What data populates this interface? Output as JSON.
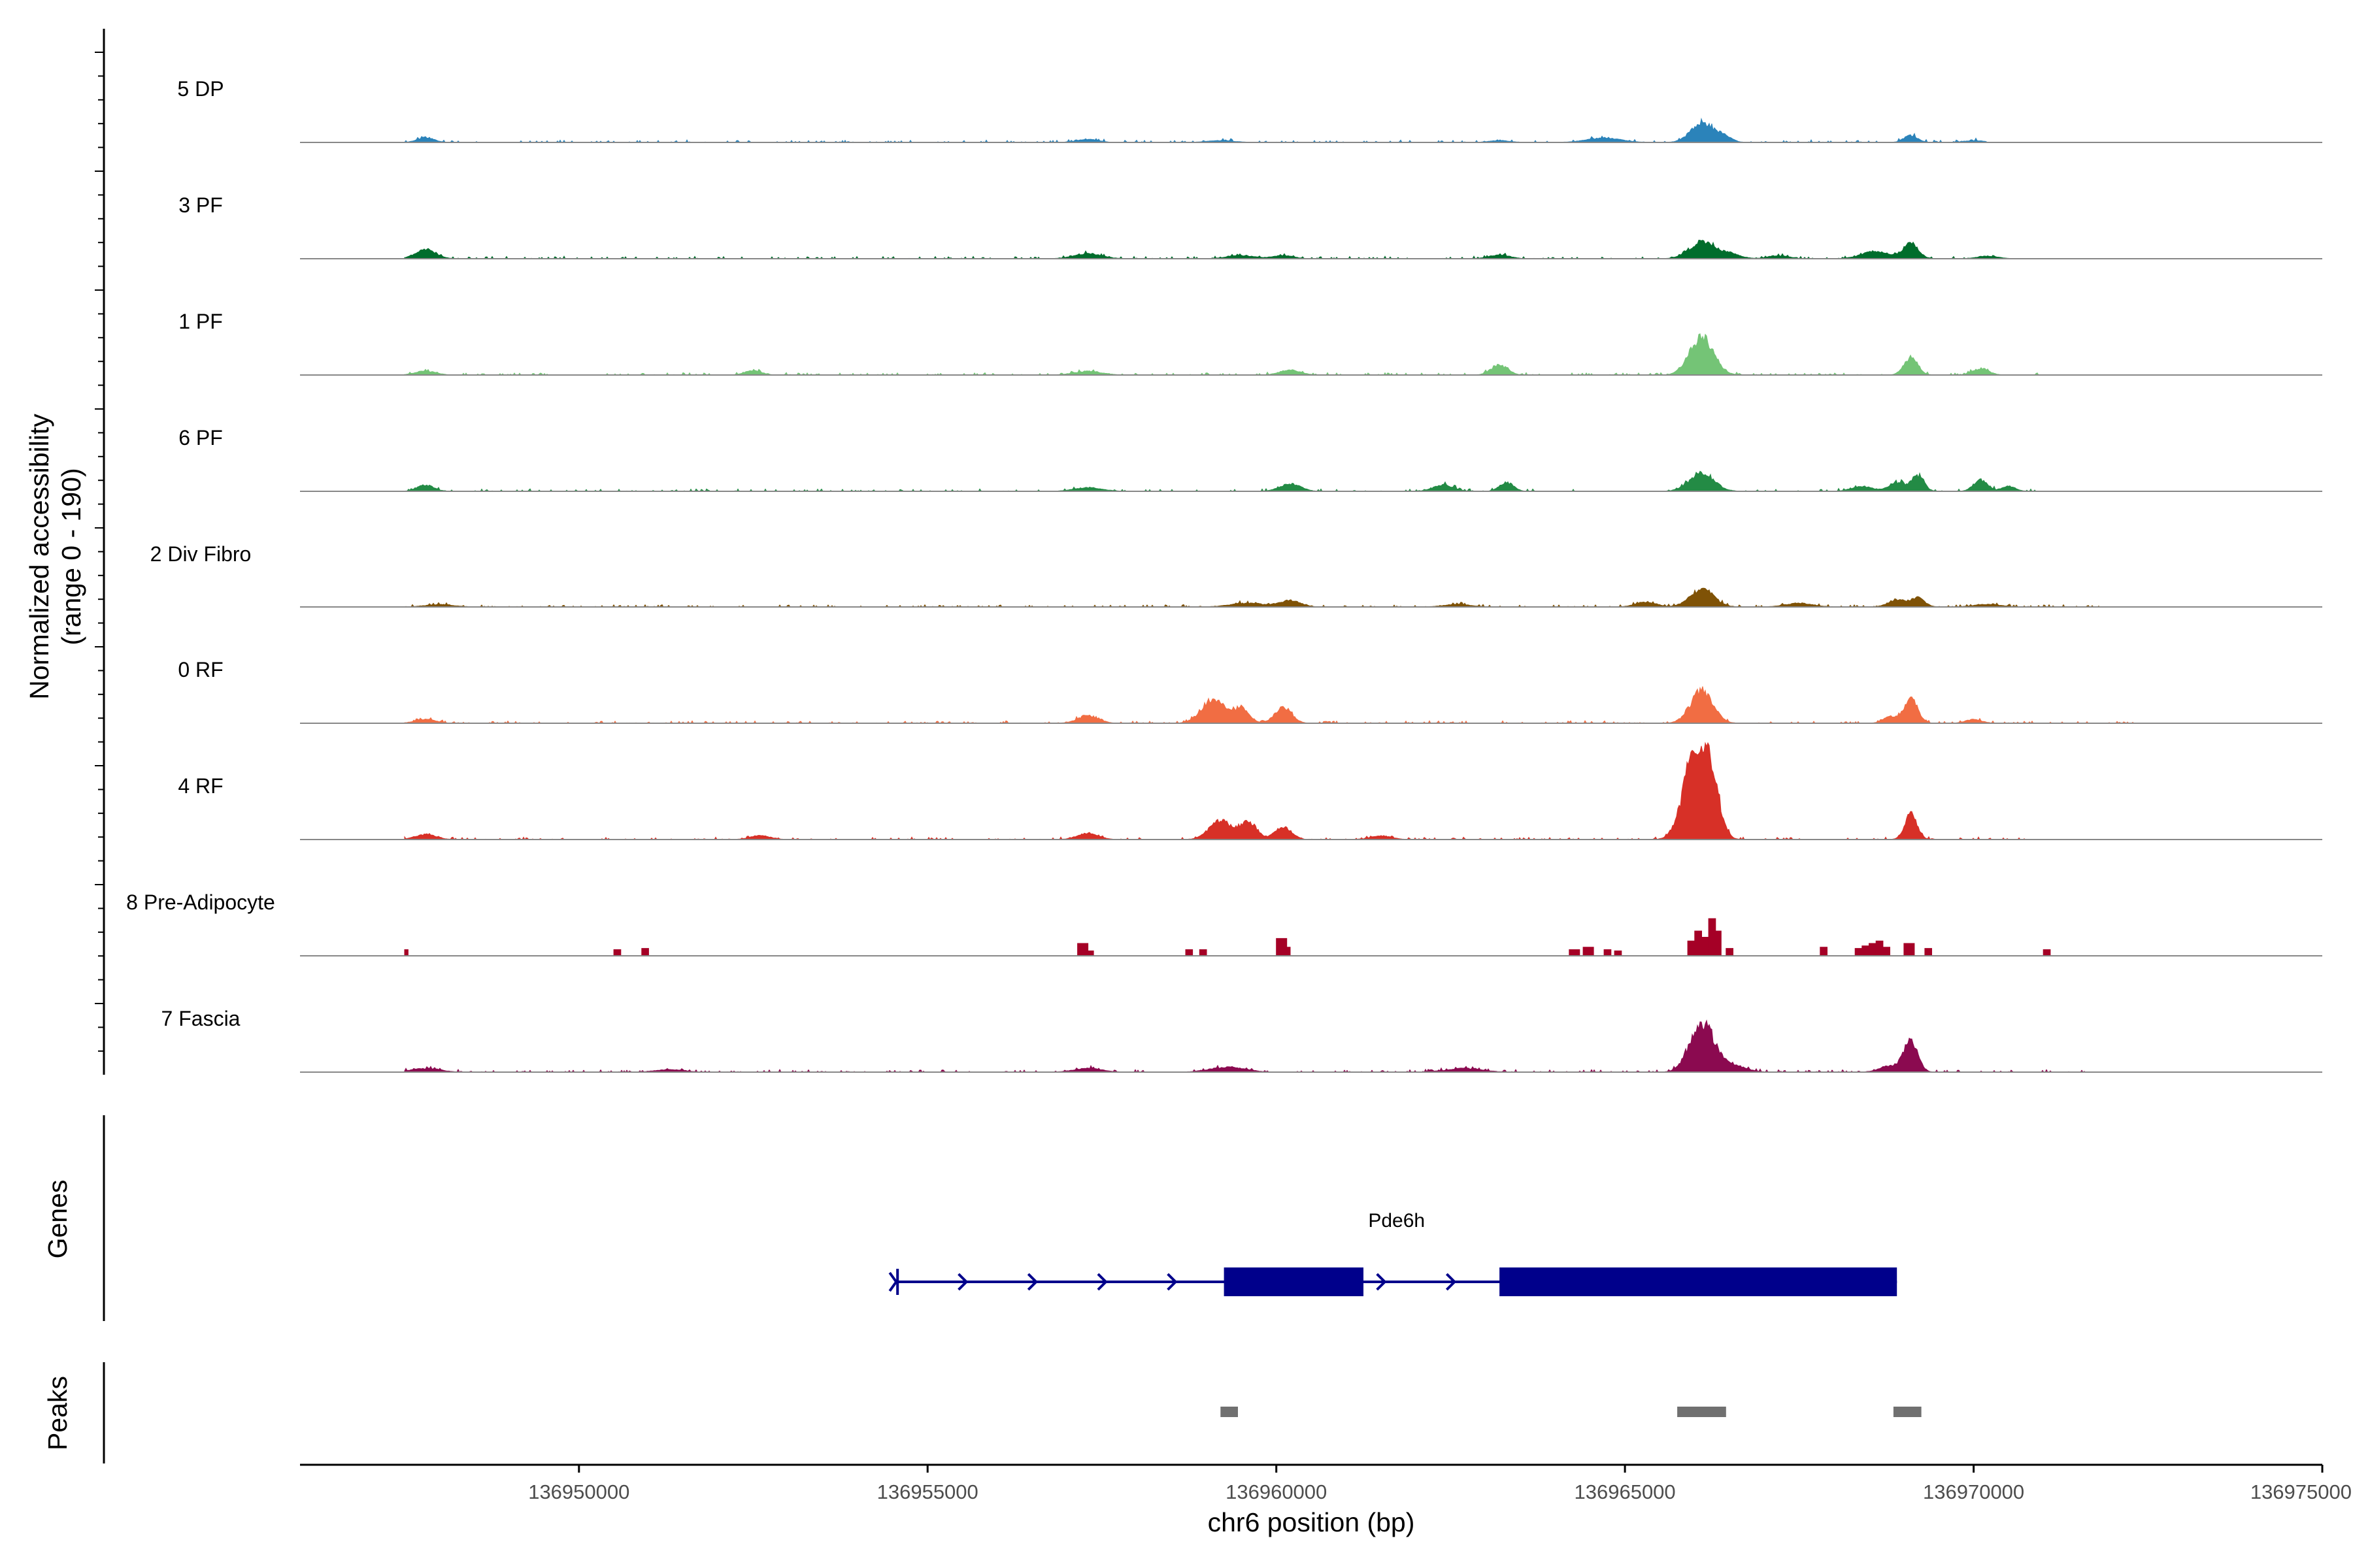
{
  "chart_data": {
    "type": "area",
    "title": "",
    "ylabel_line1": "Normalized accessibility",
    "ylabel_line2": "(range 0 - 190)",
    "xlabel": "chr6 position (bp)",
    "xlim": [
      136946000,
      136975000
    ],
    "ylim": [
      0,
      190
    ],
    "x_ticks": [
      136950000,
      136955000,
      136960000,
      136965000,
      136970000,
      136975000
    ],
    "x_tick_labels": [
      "136950000",
      "136955000",
      "136960000",
      "136965000",
      "136970000",
      "136975000"
    ],
    "tracks": [
      {
        "name": "5 DP",
        "color": "#2b83ba",
        "mode": "smooth",
        "peaks": [
          [
            136947800,
            8,
            120
          ],
          [
            136957300,
            5,
            150
          ],
          [
            136959200,
            3,
            200
          ],
          [
            136963200,
            3,
            150
          ],
          [
            136964700,
            7,
            250
          ],
          [
            136966100,
            30,
            160
          ],
          [
            136966400,
            10,
            120
          ],
          [
            136969100,
            11,
            100
          ],
          [
            136970000,
            3,
            150
          ]
        ],
        "span": [
          136947500,
          136970200
        ]
      },
      {
        "name": "3 PF",
        "color": "#006d2c",
        "mode": "smooth",
        "peaks": [
          [
            136947800,
            14,
            150
          ],
          [
            136957300,
            8,
            200
          ],
          [
            136959500,
            5,
            200
          ],
          [
            136960100,
            5,
            150
          ],
          [
            136963200,
            6,
            150
          ],
          [
            136966100,
            26,
            180
          ],
          [
            136966500,
            8,
            150
          ],
          [
            136967200,
            5,
            150
          ],
          [
            136968600,
            12,
            200
          ],
          [
            136969100,
            24,
            110
          ],
          [
            136970200,
            4,
            150
          ]
        ],
        "span": [
          136947500,
          136970600
        ]
      },
      {
        "name": "1 PF",
        "color": "#74c476",
        "mode": "smooth",
        "peaks": [
          [
            136947800,
            6,
            150
          ],
          [
            136952500,
            7,
            120
          ],
          [
            136957300,
            6,
            200
          ],
          [
            136960200,
            8,
            150
          ],
          [
            136963200,
            16,
            120
          ],
          [
            136966100,
            60,
            170
          ],
          [
            136969100,
            28,
            100
          ],
          [
            136970100,
            10,
            120
          ]
        ],
        "span": [
          136947500,
          136971000
        ]
      },
      {
        "name": "6 PF",
        "color": "#238b45",
        "mode": "smooth",
        "peaks": [
          [
            136947800,
            10,
            120
          ],
          [
            136957300,
            6,
            200
          ],
          [
            136960200,
            12,
            150
          ],
          [
            136962400,
            10,
            150
          ],
          [
            136963300,
            14,
            100
          ],
          [
            136966100,
            28,
            180
          ],
          [
            136968400,
            8,
            150
          ],
          [
            136968900,
            14,
            120
          ],
          [
            136969200,
            24,
            90
          ],
          [
            136970100,
            18,
            100
          ],
          [
            136970500,
            8,
            100
          ]
        ],
        "span": [
          136947500,
          136971000
        ]
      },
      {
        "name": "2 Div Fibro",
        "color": "#7f5206",
        "mode": "smooth",
        "peaks": [
          [
            136948000,
            4,
            200
          ],
          [
            136959600,
            6,
            250
          ],
          [
            136960200,
            10,
            150
          ],
          [
            136962600,
            4,
            200
          ],
          [
            136965300,
            8,
            150
          ],
          [
            136966100,
            28,
            170
          ],
          [
            136967500,
            6,
            200
          ],
          [
            136968900,
            12,
            120
          ],
          [
            136969200,
            14,
            100
          ],
          [
            136970200,
            4,
            200
          ]
        ],
        "span": [
          136947500,
          136971800
        ]
      },
      {
        "name": "0 RF",
        "color": "#f16d43",
        "mode": "smooth",
        "peaks": [
          [
            136947800,
            6,
            150
          ],
          [
            136957300,
            12,
            150
          ],
          [
            136959100,
            38,
            170
          ],
          [
            136959500,
            22,
            110
          ],
          [
            136960100,
            26,
            120
          ],
          [
            136966100,
            52,
            160
          ],
          [
            136968800,
            10,
            100
          ],
          [
            136969100,
            40,
            100
          ],
          [
            136970000,
            6,
            120
          ]
        ],
        "span": [
          136947500,
          136972400
        ]
      },
      {
        "name": "4 RF",
        "color": "#d73027",
        "mode": "smooth",
        "peaks": [
          [
            136947800,
            8,
            150
          ],
          [
            136952600,
            6,
            150
          ],
          [
            136957300,
            10,
            150
          ],
          [
            136959200,
            30,
            160
          ],
          [
            136959600,
            28,
            120
          ],
          [
            136960100,
            20,
            120
          ],
          [
            136961500,
            6,
            150
          ],
          [
            136966020,
            148,
            170
          ],
          [
            136966250,
            60,
            120
          ],
          [
            136969100,
            40,
            90
          ]
        ],
        "span": [
          136947500,
          136970800
        ]
      },
      {
        "name": "8 Pre-Adipocyte",
        "color": "#a50026",
        "mode": "spiky",
        "bars": [
          [
            136947500,
            136947550,
            10
          ],
          [
            136950500,
            136950600,
            10
          ],
          [
            136950900,
            136951000,
            12
          ],
          [
            136957150,
            136957300,
            20
          ],
          [
            136957300,
            136957380,
            8
          ],
          [
            136958700,
            136958800,
            10
          ],
          [
            136958900,
            136959000,
            10
          ],
          [
            136960000,
            136960150,
            28
          ],
          [
            136960100,
            136960200,
            14
          ],
          [
            136964200,
            136964350,
            10
          ],
          [
            136964400,
            136964550,
            14
          ],
          [
            136964700,
            136964800,
            10
          ],
          [
            136964850,
            136964950,
            8
          ],
          [
            136965900,
            136966000,
            24
          ],
          [
            136966000,
            136966100,
            40
          ],
          [
            136966100,
            136966200,
            30
          ],
          [
            136966200,
            136966300,
            60
          ],
          [
            136966300,
            136966380,
            40
          ],
          [
            136966450,
            136966550,
            12
          ],
          [
            136967800,
            136967900,
            14
          ],
          [
            136968300,
            136968400,
            12
          ],
          [
            136968400,
            136968500,
            16
          ],
          [
            136968500,
            136968600,
            20
          ],
          [
            136968600,
            136968700,
            24
          ],
          [
            136968700,
            136968800,
            14
          ],
          [
            136969000,
            136969150,
            20
          ],
          [
            136969300,
            136969400,
            12
          ],
          [
            136971000,
            136971100,
            10
          ]
        ]
      },
      {
        "name": "7 Fascia",
        "color": "#8b0a50",
        "mode": "smooth",
        "peaks": [
          [
            136947800,
            6,
            200
          ],
          [
            136951300,
            4,
            200
          ],
          [
            136957300,
            6,
            200
          ],
          [
            136959300,
            8,
            250
          ],
          [
            136962700,
            6,
            250
          ],
          [
            136966100,
            78,
            170
          ],
          [
            136966500,
            12,
            200
          ],
          [
            136968800,
            10,
            150
          ],
          [
            136969100,
            50,
            100
          ]
        ],
        "span": [
          136947500,
          136971600
        ]
      }
    ],
    "genes_label": "Genes",
    "gene": {
      "name": "Pde6h",
      "color": "#00008b",
      "strand": "+",
      "start": 136954550,
      "end": 136968900,
      "exons": [
        [
          136954550,
          136954580
        ],
        [
          136959250,
          136961250
        ],
        [
          136963200,
          136968900
        ]
      ],
      "arrows": [
        136955500,
        136956500,
        136957500,
        136958500,
        136961500,
        136962500
      ]
    },
    "peaks_label": "Peaks",
    "peak_regions": [
      [
        136959200,
        136959450
      ],
      [
        136965750,
        136966450
      ],
      [
        136968850,
        136969250
      ]
    ],
    "peak_color": "#707070"
  }
}
